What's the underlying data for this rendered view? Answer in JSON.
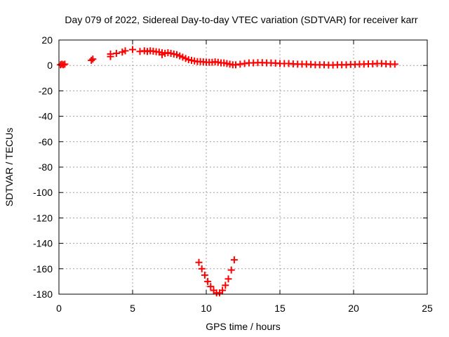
{
  "chart_data": {
    "type": "scatter",
    "title": "Day 079 of 2022, Sidereal Day-to-day VTEC variation (SDTVAR) for receiver karr",
    "xlabel": "GPS time / hours",
    "ylabel": "SDTVAR / TECUs",
    "xlim": [
      0,
      25
    ],
    "ylim": [
      -180,
      20
    ],
    "xticks": [
      0,
      5,
      10,
      15,
      20,
      25
    ],
    "yticks": [
      20,
      0,
      -20,
      -40,
      -60,
      -80,
      -100,
      -120,
      -140,
      -160,
      -180
    ],
    "grid": true,
    "marker": "plus",
    "series": [
      {
        "color": "#ff0000",
        "points": [
          [
            0.1,
            0.5
          ],
          [
            0.2,
            1.0
          ],
          [
            0.3,
            0.5
          ],
          [
            0.4,
            1.0
          ],
          [
            2.2,
            4.0
          ],
          [
            2.3,
            5.0
          ],
          [
            3.5,
            7.0
          ],
          [
            3.5,
            9.0
          ],
          [
            3.9,
            9.5
          ],
          [
            4.3,
            10.5
          ],
          [
            4.5,
            11.5
          ],
          [
            5.0,
            12.5
          ],
          [
            5.5,
            11.0
          ],
          [
            5.8,
            11.5
          ],
          [
            6.0,
            11.0
          ],
          [
            6.2,
            11.5
          ],
          [
            6.4,
            11.2
          ],
          [
            6.6,
            10.8
          ],
          [
            6.8,
            10.5
          ],
          [
            7.0,
            10.0
          ],
          [
            7.0,
            8.5
          ],
          [
            7.2,
            9.5
          ],
          [
            7.4,
            10.0
          ],
          [
            7.6,
            9.5
          ],
          [
            7.8,
            9.0
          ],
          [
            8.0,
            8.5
          ],
          [
            8.2,
            7.5
          ],
          [
            8.4,
            6.5
          ],
          [
            8.6,
            5.5
          ],
          [
            8.8,
            4.5
          ],
          [
            9.0,
            4.0
          ],
          [
            9.2,
            3.5
          ],
          [
            9.4,
            3.0
          ],
          [
            9.6,
            3.0
          ],
          [
            9.8,
            2.8
          ],
          [
            10.0,
            2.5
          ],
          [
            10.2,
            2.5
          ],
          [
            10.4,
            2.5
          ],
          [
            10.6,
            2.8
          ],
          [
            10.8,
            2.5
          ],
          [
            11.0,
            2.0
          ],
          [
            11.2,
            2.0
          ],
          [
            11.4,
            1.5
          ],
          [
            11.6,
            1.0
          ],
          [
            11.8,
            0.5
          ],
          [
            12.0,
            0.5
          ],
          [
            12.3,
            1.0
          ],
          [
            12.6,
            1.5
          ],
          [
            12.9,
            2.0
          ],
          [
            13.2,
            2.0
          ],
          [
            13.5,
            2.2
          ],
          [
            13.8,
            2.2
          ],
          [
            14.1,
            2.0
          ],
          [
            14.4,
            2.0
          ],
          [
            14.7,
            1.8
          ],
          [
            15.0,
            1.5
          ],
          [
            15.3,
            1.5
          ],
          [
            15.6,
            1.5
          ],
          [
            15.9,
            1.2
          ],
          [
            16.2,
            1.0
          ],
          [
            16.5,
            1.0
          ],
          [
            16.8,
            1.0
          ],
          [
            17.1,
            0.8
          ],
          [
            17.4,
            0.5
          ],
          [
            17.7,
            0.5
          ],
          [
            18.0,
            0.5
          ],
          [
            18.3,
            0.3
          ],
          [
            18.6,
            0.3
          ],
          [
            18.9,
            0.5
          ],
          [
            19.2,
            0.5
          ],
          [
            19.5,
            0.5
          ],
          [
            19.8,
            0.8
          ],
          [
            20.1,
            0.8
          ],
          [
            20.4,
            1.0
          ],
          [
            20.7,
            1.0
          ],
          [
            21.0,
            1.2
          ],
          [
            21.3,
            1.2
          ],
          [
            21.6,
            1.5
          ],
          [
            21.9,
            1.5
          ],
          [
            22.2,
            1.2
          ],
          [
            22.5,
            1.0
          ],
          [
            22.8,
            1.0
          ],
          [
            9.5,
            -155
          ],
          [
            9.7,
            -160
          ],
          [
            9.9,
            -165
          ],
          [
            10.1,
            -170
          ],
          [
            10.3,
            -174
          ],
          [
            10.5,
            -177
          ],
          [
            10.7,
            -179
          ],
          [
            10.9,
            -179
          ],
          [
            11.1,
            -177
          ],
          [
            11.3,
            -173
          ],
          [
            11.5,
            -168
          ],
          [
            11.7,
            -161
          ],
          [
            11.9,
            -153
          ]
        ]
      }
    ]
  }
}
